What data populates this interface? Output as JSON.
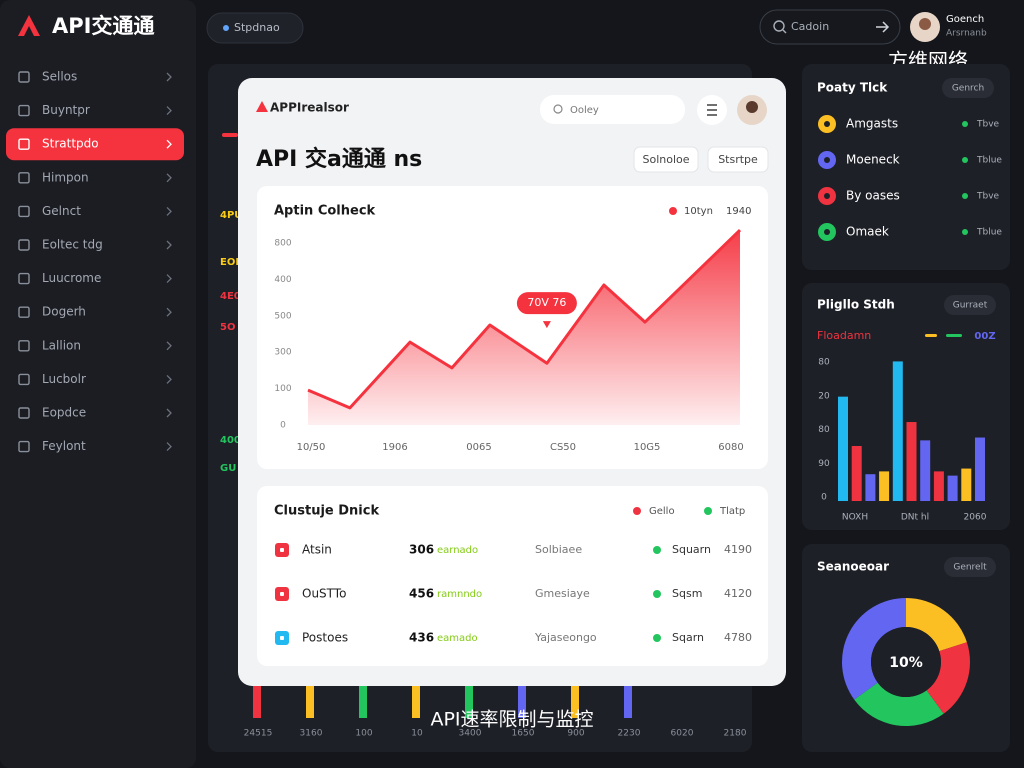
{
  "sidebar": {
    "brand": "API交通通",
    "active": 2,
    "menu": [
      "Sellos",
      "Buyntpr",
      "Strattpdo",
      "Himpon",
      "Gelnct",
      "Eoltec tdg",
      "Luucrome",
      "Dogerh",
      "Lallion",
      "Lucbolr",
      "Eopdce",
      "Feylont"
    ]
  },
  "topbar": {
    "pill": "Stpdnao",
    "search": "Cadoin",
    "user_name": "Goench",
    "user_role": "Arsrnanb",
    "watermark": "方维网络"
  },
  "background": {
    "side_labels": [
      "4PU",
      "EOD",
      "4E0",
      "5O",
      "400",
      "GU"
    ],
    "side_colors": [
      "#facc15",
      "#facc15",
      "#ef3340",
      "#ef3340",
      "#22c55e",
      "#22c55e"
    ],
    "bottom_labels": [
      "24515",
      "3160",
      "100",
      "10",
      "3400",
      "1650",
      "900",
      "2230",
      "6020",
      "2180"
    ]
  },
  "modal": {
    "brand": "APPIrealsor",
    "search": "Ooley",
    "title": "API 交a通通 ns",
    "buttons": [
      "Solnoloe",
      "Stsrtpe"
    ],
    "area_chart": {
      "type": "area",
      "title": "Aptin Colheck",
      "legend": [
        "10tyn",
        "1940"
      ],
      "y_labels": [
        "800",
        "400",
        "500",
        "300",
        "100",
        "0"
      ],
      "x_labels": [
        "10/50",
        "1906",
        "0065",
        "CS50",
        "10G5",
        "6080"
      ],
      "callout": "70V 76",
      "callout_at": 5,
      "color": "#f5333f",
      "x": [
        0,
        9.7,
        23.6,
        33.3,
        42.1,
        55.3,
        68.5,
        78,
        100
      ],
      "values": [
        96,
        47,
        228,
        157,
        275,
        170,
        385,
        283,
        536
      ],
      "xlim": [
        0,
        100
      ],
      "ylim": [
        0,
        550
      ]
    },
    "table": {
      "title": "Clustuje Dnick",
      "legend": [
        "Gello",
        "Tlatp"
      ],
      "icon_colors": [
        "#ef3340",
        "#ef3340",
        "#22b8f0"
      ],
      "rows": [
        [
          "Atsin",
          "306",
          "earnado",
          "Solbiaee",
          "Squarn",
          "4190"
        ],
        [
          "OuSTTo",
          "456",
          "ramnndo",
          "Gmesiaye",
          "Sqsm",
          "4120"
        ],
        [
          "Postoes",
          "436",
          "eamado",
          "Yajaseongo",
          "Sqarn",
          "4780"
        ]
      ]
    }
  },
  "panels": {
    "list": {
      "title": "Poaty Tlck",
      "button": "Genrch",
      "items": [
        {
          "name": "Amgasts",
          "status": "Tbve",
          "color": "#fbbf24"
        },
        {
          "name": "Moeneck",
          "status": "Tblue",
          "color": "#6366f1"
        },
        {
          "name": "By oases",
          "status": "Tbve",
          "color": "#ef3340"
        },
        {
          "name": "Omaek",
          "status": "Tblue",
          "color": "#22c55e"
        }
      ]
    },
    "bars": {
      "type": "bar",
      "title": "Pligllo Stdh",
      "button": "Gurraet",
      "subtitle": "Floadamn",
      "legend": "00Z",
      "y_labels": [
        "80",
        "20",
        "80",
        "90",
        "0"
      ],
      "x_labels": [
        "NOXH",
        "DNt hl",
        "2060"
      ],
      "ylim": [
        0,
        100
      ],
      "values": [
        74,
        39,
        19,
        21,
        99,
        56,
        43,
        21,
        18,
        23,
        45
      ],
      "colors": [
        "#22b8f0",
        "#ef3340",
        "#6366f1",
        "#fbbf24",
        "#22b8f0",
        "#ef3340",
        "#6366f1",
        "#ef3340",
        "#6366f1",
        "#fbbf24",
        "#6366f1"
      ]
    },
    "donut": {
      "type": "pie",
      "title": "Seanoeoar",
      "button": "Genrelt",
      "center": "10%",
      "values": [
        20,
        20,
        25,
        35
      ],
      "colors": [
        "#fbbf24",
        "#ef3340",
        "#22c55e",
        "#6366f1"
      ]
    }
  },
  "caption": "API速率限制与监控"
}
